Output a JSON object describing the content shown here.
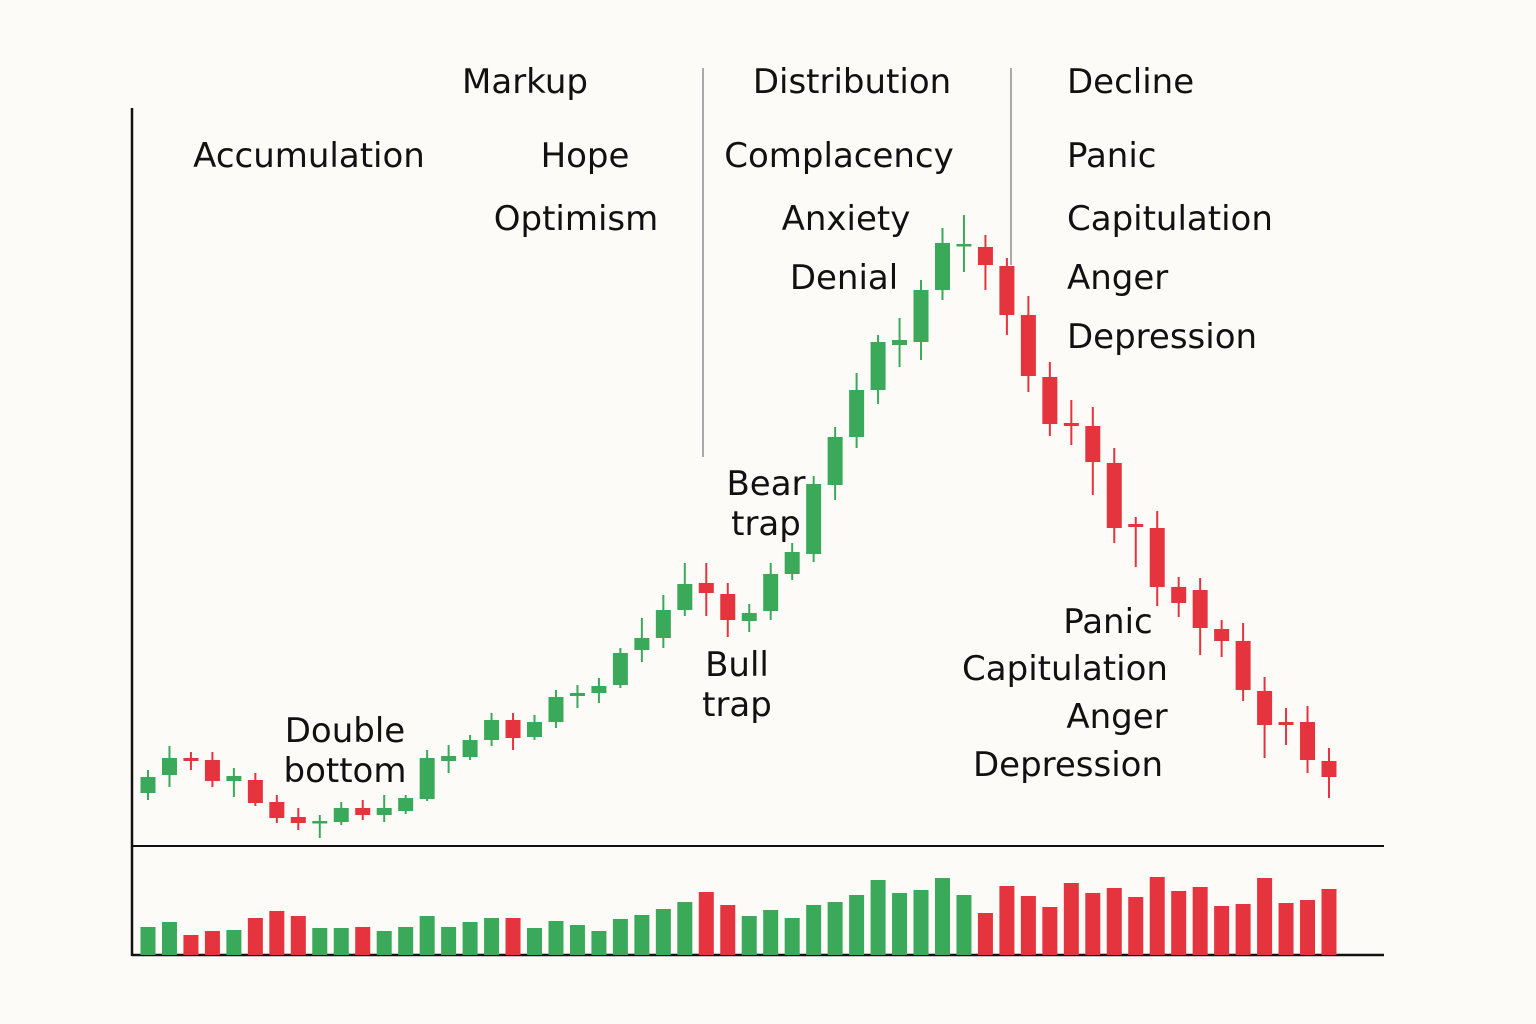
{
  "chart_data": {
    "type": "candlestick",
    "open": [
      52,
      70,
      87,
      85,
      64,
      65,
      43,
      28,
      22,
      23,
      37,
      30,
      34,
      46,
      84,
      88,
      105,
      125,
      108,
      123,
      149,
      152,
      160,
      195,
      207,
      235,
      262,
      251,
      224,
      234,
      271,
      291,
      360,
      408,
      455,
      500,
      503,
      555,
      599,
      598,
      579,
      530,
      468,
      422,
      419,
      382,
      321,
      317,
      258,
      255,
      216,
      204,
      154,
      123,
      123,
      84
    ],
    "high": [
      75,
      99,
      93,
      93,
      77,
      72,
      50,
      37,
      30,
      43,
      45,
      50,
      50,
      95,
      100,
      110,
      132,
      132,
      130,
      155,
      160,
      167,
      197,
      227,
      250,
      282,
      282,
      262,
      241,
      282,
      302,
      369,
      418,
      472,
      510,
      527,
      565,
      617,
      630,
      610,
      587,
      549,
      483,
      445,
      438,
      397,
      328,
      334,
      268,
      267,
      225,
      222,
      168,
      137,
      139,
      97
    ],
    "low": [
      45,
      58,
      75,
      58,
      48,
      39,
      22,
      15,
      7,
      20,
      25,
      23,
      31,
      44,
      72,
      85,
      99,
      95,
      105,
      117,
      137,
      142,
      157,
      183,
      197,
      229,
      229,
      208,
      213,
      225,
      265,
      283,
      345,
      397,
      441,
      478,
      485,
      545,
      573,
      555,
      510,
      453,
      409,
      400,
      350,
      302,
      278,
      239,
      228,
      190,
      188,
      144,
      87,
      100,
      72,
      47
    ],
    "close": [
      68,
      87,
      84,
      64,
      69,
      42,
      27,
      22,
      24,
      37,
      30,
      37,
      47,
      87,
      89,
      105,
      125,
      107,
      123,
      148,
      152,
      159,
      192,
      207,
      235,
      261,
      252,
      225,
      232,
      271,
      293,
      361,
      408,
      455,
      503,
      505,
      555,
      602,
      601,
      580,
      530,
      469,
      421,
      419,
      383,
      317,
      318,
      258,
      242,
      217,
      204,
      155,
      120,
      120,
      85,
      68
    ],
    "volume": [
      28,
      33,
      20,
      24,
      25,
      37,
      44,
      39,
      27,
      27,
      28,
      24,
      28,
      39,
      28,
      33,
      37,
      37,
      27,
      34,
      30,
      24,
      36,
      40,
      46,
      53,
      63,
      50,
      39,
      45,
      37,
      50,
      53,
      60,
      75,
      62,
      65,
      77,
      60,
      42,
      69,
      59,
      48,
      72,
      62,
      67,
      58,
      78,
      64,
      68,
      49,
      51,
      77,
      52,
      55,
      66
    ],
    "up_color": "#3aaa5a",
    "down_color": "#e5343d",
    "ylim": [
      0,
      735
    ],
    "volume_ylim": [
      0,
      107
    ],
    "annotations": [
      "Markup",
      "Distribution",
      "Decline",
      "Accumulation",
      "Hope",
      "Optimism",
      "Complacency",
      "Anxiety",
      "Denial",
      "Panic",
      "Capitulation",
      "Anger",
      "Depression",
      "Double bottom",
      "Bear trap",
      "Bull trap",
      "Panic",
      "Capitulation",
      "Anger",
      "Depression"
    ]
  }
}
